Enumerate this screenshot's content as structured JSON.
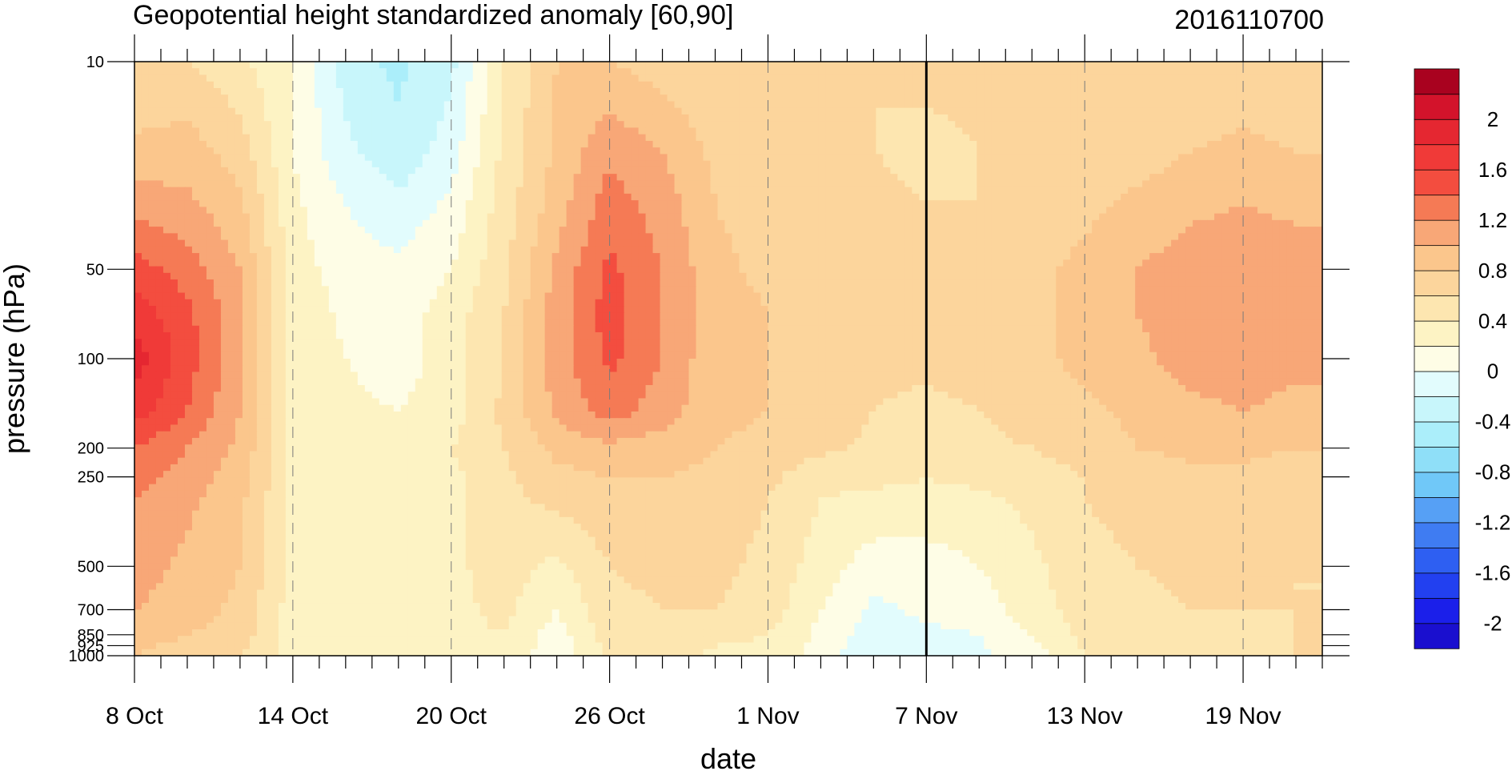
{
  "chart_data": {
    "type": "heatmap",
    "title": "Geopotential height standardized anomaly [60,90]",
    "subtitle": "2016110700",
    "xlabel": "date",
    "ylabel": "pressure (hPa)",
    "x_ticks": [
      "8 Oct",
      "14 Oct",
      "20 Oct",
      "26 Oct",
      "1 Nov",
      "7 Nov",
      "13 Nov",
      "19 Nov"
    ],
    "x_range": [
      "2016-10-08",
      "2016-11-22"
    ],
    "y_ticks": [
      10,
      50,
      100,
      200,
      250,
      500,
      700,
      850,
      925,
      1000
    ],
    "y_range": [
      1000,
      10
    ],
    "y_scale": "log",
    "marker_date": "2016-11-07",
    "colorbar": {
      "levels": [
        -2.2,
        -2,
        -1.8,
        -1.6,
        -1.4,
        -1.2,
        -1,
        -0.8,
        -0.6,
        -0.4,
        -0.2,
        0,
        0.2,
        0.4,
        0.6,
        0.8,
        1,
        1.2,
        1.4,
        1.6,
        1.8,
        2,
        2.2
      ],
      "labels": [
        "2",
        "1.6",
        "1.2",
        "0.8",
        "0.4",
        "0",
        "-0.4",
        "-0.8",
        "-1.2",
        "-1.6",
        "-2"
      ],
      "colors": [
        "#1a0fcf",
        "#1b1fea",
        "#2240f0",
        "#2e5ff2",
        "#3f7cf2",
        "#56a0f5",
        "#70c8f8",
        "#8fdff8",
        "#abeefa",
        "#c8f6fb",
        "#e2fcfd",
        "#fefde6",
        "#fdf3c4",
        "#fde6b0",
        "#fcd59c",
        "#fbc68c",
        "#f8a777",
        "#f57a55",
        "#f34d3f",
        "#f03a38",
        "#e52731",
        "#d3132b",
        "#a9021f"
      ]
    },
    "field": {
      "days": [
        0,
        2,
        4,
        6,
        8,
        10,
        12,
        14,
        16,
        18,
        20,
        22,
        24,
        26,
        28,
        30,
        32,
        34,
        36,
        38,
        40,
        42,
        44
      ],
      "levels_hPa": [
        10,
        20,
        30,
        50,
        70,
        100,
        150,
        200,
        250,
        300,
        500,
        700,
        850,
        1000
      ],
      "values": [
        [
          0.6,
          0.6,
          0.45,
          0.2,
          -0.3,
          -0.45,
          -0.25,
          0.4,
          0.8,
          0.8,
          0.7,
          0.6,
          0.6,
          0.6,
          0.6,
          0.65,
          0.65,
          0.6,
          0.6,
          0.6,
          0.6,
          0.65,
          0.65
        ],
        [
          0.85,
          0.9,
          0.7,
          0.2,
          -0.15,
          -0.35,
          -0.1,
          0.45,
          0.85,
          1.15,
          1.0,
          0.75,
          0.65,
          0.65,
          0.6,
          0.55,
          0.6,
          0.65,
          0.65,
          0.7,
          0.8,
          0.85,
          0.8
        ],
        [
          1.1,
          1.05,
          0.85,
          0.25,
          0.0,
          -0.15,
          0.05,
          0.5,
          0.9,
          1.3,
          1.1,
          0.8,
          0.7,
          0.7,
          0.65,
          0.6,
          0.6,
          0.7,
          0.75,
          0.85,
          0.95,
          1.0,
          0.95
        ],
        [
          1.5,
          1.3,
          1.0,
          0.3,
          0.1,
          0.05,
          0.2,
          0.55,
          1.05,
          1.45,
          1.2,
          0.85,
          0.75,
          0.75,
          0.7,
          0.7,
          0.7,
          0.75,
          0.85,
          1.0,
          1.1,
          1.15,
          1.1
        ],
        [
          1.7,
          1.45,
          1.05,
          0.35,
          0.15,
          0.1,
          0.3,
          0.6,
          1.1,
          1.5,
          1.2,
          0.9,
          0.8,
          0.75,
          0.7,
          0.7,
          0.7,
          0.75,
          0.85,
          1.0,
          1.15,
          1.15,
          1.1
        ],
        [
          1.9,
          1.5,
          1.05,
          0.35,
          0.2,
          0.1,
          0.3,
          0.6,
          1.1,
          1.45,
          1.2,
          0.85,
          0.8,
          0.75,
          0.65,
          0.65,
          0.7,
          0.75,
          0.85,
          0.95,
          1.1,
          1.1,
          1.05
        ],
        [
          1.7,
          1.4,
          1.0,
          0.35,
          0.25,
          0.2,
          0.3,
          0.65,
          1.05,
          1.3,
          1.1,
          0.85,
          0.8,
          0.75,
          0.6,
          0.55,
          0.6,
          0.7,
          0.75,
          0.85,
          0.95,
          1.0,
          0.95
        ],
        [
          1.4,
          1.2,
          0.95,
          0.35,
          0.25,
          0.2,
          0.4,
          0.6,
          0.85,
          0.95,
          0.9,
          0.8,
          0.75,
          0.65,
          0.55,
          0.5,
          0.55,
          0.6,
          0.7,
          0.8,
          0.85,
          0.85,
          0.8
        ],
        [
          1.3,
          1.1,
          0.9,
          0.35,
          0.25,
          0.2,
          0.35,
          0.55,
          0.75,
          0.8,
          0.8,
          0.75,
          0.65,
          0.45,
          0.45,
          0.4,
          0.45,
          0.5,
          0.6,
          0.7,
          0.75,
          0.75,
          0.7
        ],
        [
          1.2,
          1.05,
          0.85,
          0.35,
          0.25,
          0.2,
          0.35,
          0.55,
          0.65,
          0.75,
          0.75,
          0.7,
          0.6,
          0.4,
          0.35,
          0.35,
          0.35,
          0.45,
          0.6,
          0.65,
          0.7,
          0.7,
          0.65
        ],
        [
          1.1,
          0.95,
          0.8,
          0.35,
          0.25,
          0.25,
          0.35,
          0.5,
          0.35,
          0.6,
          0.65,
          0.65,
          0.55,
          0.3,
          0.1,
          0.1,
          0.2,
          0.35,
          0.55,
          0.6,
          0.65,
          0.65,
          0.6
        ],
        [
          1.0,
          0.9,
          0.75,
          0.3,
          0.25,
          0.3,
          0.35,
          0.45,
          0.2,
          0.55,
          0.6,
          0.6,
          0.5,
          0.2,
          -0.05,
          0.05,
          0.1,
          0.3,
          0.5,
          0.55,
          0.6,
          0.6,
          0.6
        ],
        [
          0.9,
          0.8,
          0.7,
          0.3,
          0.25,
          0.3,
          0.35,
          0.4,
          0.1,
          0.5,
          0.55,
          0.45,
          0.4,
          0.15,
          -0.1,
          -0.05,
          0.0,
          0.2,
          0.45,
          0.5,
          0.55,
          0.55,
          0.6
        ],
        [
          0.8,
          0.7,
          0.6,
          0.3,
          0.3,
          0.3,
          0.35,
          0.35,
          0.05,
          0.45,
          0.5,
          0.35,
          0.35,
          0.1,
          -0.15,
          -0.1,
          -0.05,
          0.1,
          0.4,
          0.5,
          0.5,
          0.55,
          0.6
        ]
      ]
    }
  }
}
